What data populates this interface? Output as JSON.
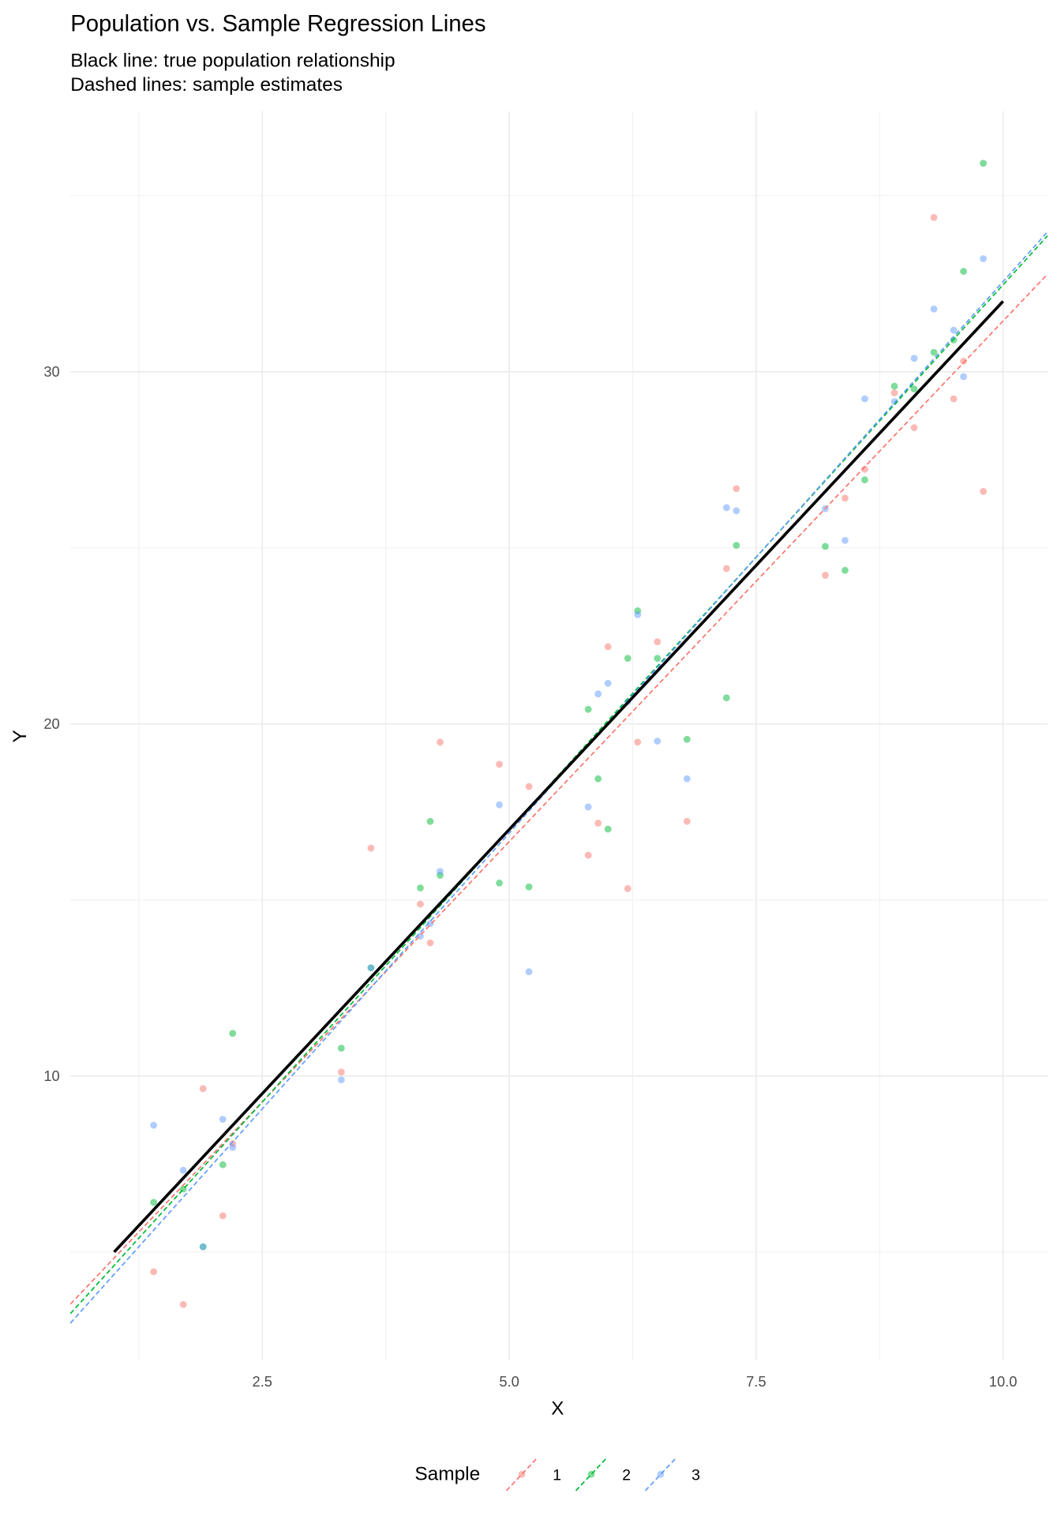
{
  "chart_data": {
    "type": "scatter",
    "title": "Population vs. Sample Regression Lines",
    "subtitle": [
      "Black line: true population relationship",
      "Dashed lines: sample estimates"
    ],
    "x_label": "X",
    "y_label": "Y",
    "legend_title": "Sample",
    "legend_position": "bottom",
    "xlim": [
      0.557,
      10.45
    ],
    "ylim": [
      1.92,
      37.4
    ],
    "xticks": [
      2.5,
      {
        "value": 5,
        "label": "5.0"
      },
      7.5,
      {
        "value": 10,
        "label": "10.0"
      }
    ],
    "yticks": [
      10,
      20,
      30
    ],
    "x_minor_grid": [
      1.25,
      3.75,
      6.25,
      8.75
    ],
    "y_minor_grid": [
      5,
      15,
      25,
      35
    ],
    "grid": true,
    "x": [
      1.4,
      1.7,
      1.9,
      2.1,
      2.2,
      3.3,
      3.6,
      4.1,
      4.2,
      4.3,
      4.9,
      5.2,
      5.8,
      5.9,
      6.0,
      6.2,
      6.3,
      6.5,
      6.8,
      7.2,
      7.3,
      8.2,
      8.4,
      8.6,
      8.9,
      9.1,
      9.3,
      9.5,
      9.6,
      9.8
    ],
    "series": [
      {
        "name": "1",
        "color": "#F8766D",
        "values": [
          4.44,
          3.51,
          9.64,
          6.03,
          8.08,
          10.11,
          16.47,
          14.88,
          13.78,
          19.48,
          18.85,
          18.22,
          16.27,
          17.18,
          22.19,
          15.32,
          19.48,
          22.33,
          17.23,
          24.41,
          26.68,
          24.22,
          26.41,
          27.23,
          29.4,
          28.41,
          34.38,
          29.23,
          30.3,
          26.6
        ],
        "fit": {
          "x": [
            0.557,
            10.45
          ],
          "values": [
            3.52,
            32.77
          ]
        }
      },
      {
        "name": "2",
        "color": "#00BA38",
        "values": [
          6.41,
          6.79,
          5.15,
          7.48,
          11.21,
          10.79,
          13.07,
          15.34,
          17.23,
          15.7,
          15.48,
          15.37,
          20.41,
          18.44,
          17.01,
          21.86,
          23.21,
          21.86,
          19.56,
          20.74,
          25.07,
          25.04,
          24.36,
          26.93,
          29.59,
          29.51,
          30.55,
          30.9,
          32.85,
          35.92
        ],
        "fit": {
          "x": [
            0.557,
            10.45
          ],
          "values": [
            3.25,
            33.86
          ]
        }
      },
      {
        "name": "3",
        "color": "#619CFF",
        "values": [
          8.6,
          7.32,
          5.15,
          8.77,
          7.97,
          9.89,
          13.07,
          13.97,
          14.33,
          15.81,
          17.7,
          12.96,
          17.64,
          20.85,
          21.15,
          20.63,
          23.1,
          19.51,
          18.44,
          26.14,
          26.05,
          26.11,
          25.21,
          29.23,
          29.15,
          30.38,
          31.78,
          31.18,
          29.86,
          33.21
        ],
        "fit": {
          "x": [
            0.557,
            10.45
          ],
          "values": [
            2.98,
            33.97
          ]
        }
      }
    ],
    "population_line": {
      "color": "#000000",
      "x": [
        1,
        10
      ],
      "values": [
        5,
        32
      ]
    }
  }
}
